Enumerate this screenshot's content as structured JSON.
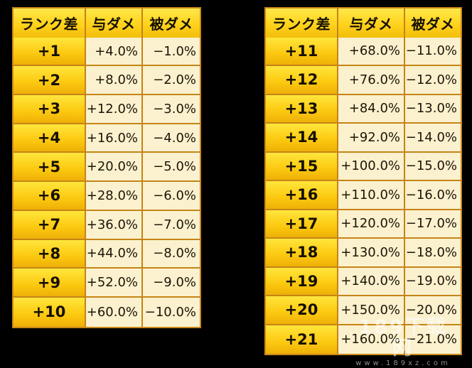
{
  "headers": [
    "ランク差",
    "与ダメ",
    "被ダメ"
  ],
  "left_rows": [
    [
      "+1",
      "+4.0%",
      "−1.0%"
    ],
    [
      "+2",
      "+8.0%",
      "−2.0%"
    ],
    [
      "+3",
      "+12.0%",
      "−3.0%"
    ],
    [
      "+4",
      "+16.0%",
      "−4.0%"
    ],
    [
      "+5",
      "+20.0%",
      "−5.0%"
    ],
    [
      "+6",
      "+28.0%",
      "−6.0%"
    ],
    [
      "+7",
      "+36.0%",
      "−7.0%"
    ],
    [
      "+8",
      "+44.0%",
      "−8.0%"
    ],
    [
      "+9",
      "+52.0%",
      "−9.0%"
    ],
    [
      "+10",
      "+60.0%",
      "−10.0%"
    ]
  ],
  "right_rows": [
    [
      "+11",
      "+68.0%",
      "−11.0%"
    ],
    [
      "+12",
      "+76.0%",
      "−12.0%"
    ],
    [
      "+13",
      "+84.0%",
      "−13.0%"
    ],
    [
      "+14",
      "+92.0%",
      "−14.0%"
    ],
    [
      "+15",
      "+100.0%",
      "−15.0%"
    ],
    [
      "+16",
      "+110.0%",
      "−16.0%"
    ],
    [
      "+17",
      "+120.0%",
      "−17.0%"
    ],
    [
      "+18",
      "+130.0%",
      "−18.0%"
    ],
    [
      "+19",
      "+140.0%",
      "−19.0%"
    ],
    [
      "+20",
      "+150.0%",
      "−20.0%"
    ],
    [
      "+21",
      "+160.0%",
      "−21.0%"
    ]
  ],
  "watermark": {
    "main": "189下载网",
    "sub": "www.189xz.com"
  },
  "colors": {
    "background": "#000000",
    "header_bg": "#ffd21c",
    "rank_bg": "#fcc80f",
    "value_bg": "#fbf1ce",
    "border": "#c58416"
  }
}
